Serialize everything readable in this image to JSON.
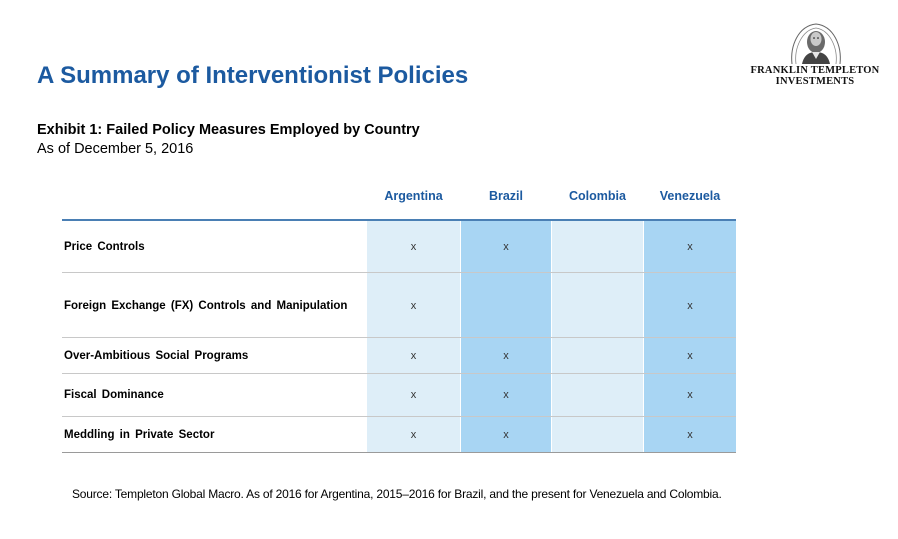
{
  "slide": {
    "title": "A Summary of Interventionist Policies",
    "logo": {
      "icon": "portrait-seal-icon",
      "line1": "FRANKLIN TEMPLETON",
      "line2": "INVESTMENTS"
    }
  },
  "exhibit": {
    "title": "Exhibit 1: Failed Policy Measures Employed by Country",
    "subtitle": "As of December 5, 2016",
    "columns": [
      "Argentina",
      "Brazil",
      "Colombia",
      "Venezuela"
    ],
    "mark_symbol": "x",
    "rows": [
      {
        "label": "Price  Controls",
        "marks": [
          true,
          true,
          false,
          true
        ]
      },
      {
        "label": "Foreign  Exchange  (FX) Controls and Manipulation",
        "marks": [
          true,
          false,
          false,
          true
        ]
      },
      {
        "label": "Over-Ambitious  Social  Programs",
        "marks": [
          true,
          true,
          false,
          true
        ]
      },
      {
        "label": "Fiscal  Dominance",
        "marks": [
          true,
          true,
          false,
          true
        ]
      },
      {
        "label": "Meddling  in Private  Sector",
        "marks": [
          true,
          true,
          false,
          true
        ]
      }
    ],
    "colors": {
      "header_text": "#1c5aa0",
      "column_light": "#deeef8",
      "column_mid": "#a8d5f3"
    }
  },
  "source": "Source: Templeton Global Macro. As of 2016 for Argentina, 2015–2016 for Brazil, and the present for Venezuela and Colombia."
}
